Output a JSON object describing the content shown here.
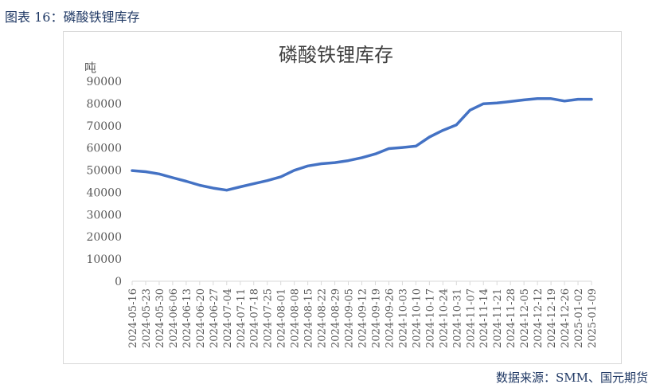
{
  "figure": {
    "label_prefix": "图表",
    "label_number": "16",
    "label_title": "磷酸铁锂库存"
  },
  "source": {
    "prefix": "数据来源：",
    "english": "SMM",
    "rest": "、国元期货"
  },
  "colors": {
    "line": "#4472c4",
    "axis": "#d9d9d9",
    "text": "#404040"
  },
  "chart_data": {
    "type": "line",
    "title": "磷酸铁锂库存",
    "ylabel": "吨",
    "xlabel": "",
    "ylim": [
      0,
      90000
    ],
    "yticks": [
      0,
      10000,
      20000,
      30000,
      40000,
      50000,
      60000,
      70000,
      80000,
      90000
    ],
    "grid": false,
    "legend": "none",
    "categories": [
      "2024-05-16",
      "2024-05-23",
      "2024-05-30",
      "2024-06-06",
      "2024-06-13",
      "2024-06-20",
      "2024-06-27",
      "2024-07-04",
      "2024-07-11",
      "2024-07-18",
      "2024-07-25",
      "2024-08-01",
      "2024-08-08",
      "2024-08-15",
      "2024-08-22",
      "2024-08-29",
      "2024-09-05",
      "2024-09-12",
      "2024-09-19",
      "2024-09-26",
      "2024-10-03",
      "2024-10-10",
      "2024-10-17",
      "2024-10-24",
      "2024-10-31",
      "2024-11-07",
      "2024-11-14",
      "2024-11-21",
      "2024-11-28",
      "2024-12-05",
      "2024-12-12",
      "2024-12-19",
      "2024-12-26",
      "2025-01-02",
      "2025-01-09"
    ],
    "tick_labels": [
      "2024-05-16",
      "2024-05-23",
      "2024-05-30",
      "2024-06-06",
      "2024-06-13",
      "2024-06-20",
      "2024-06-27",
      "2024-07-04",
      "2024-07-11",
      "2024-07-18",
      "2024-07-25",
      "2024-08-01",
      "2024-08-08",
      "2024-08-15",
      "2024-08-22",
      "2024-08-29",
      "2024-09-05",
      "2024-09-12",
      "2024-09-19",
      "2024-09-26",
      "2024-10-03",
      "2024-10-10",
      "2024-10-17",
      "2024-10-24",
      "2024-10-31",
      "2024-11-07",
      "2024-11-14",
      "2024-11-21",
      "2024-11-28",
      "2024-12-05",
      "2024-12-12",
      "2024-12-19",
      "2024-12-26",
      "2025-01-02",
      "2025-01-09"
    ],
    "series": [
      {
        "values": [
          49800,
          49300,
          48300,
          46600,
          45000,
          43200,
          41900,
          41000,
          42500,
          43900,
          45300,
          47000,
          49900,
          51900,
          52900,
          53400,
          54300,
          55600,
          57300,
          59700,
          60200,
          60800,
          64900,
          67900,
          70400,
          77000,
          79900,
          80200,
          80900,
          81600,
          82200,
          82200,
          81100,
          81900,
          81900
        ]
      }
    ]
  }
}
